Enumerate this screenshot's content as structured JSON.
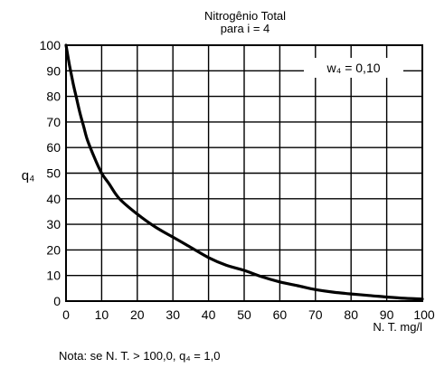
{
  "chart_data": {
    "type": "line",
    "title": "Nitrogênio Total",
    "subtitle": "para i = 4",
    "xlabel": "N. T. mg/l",
    "ylabel": "q₄",
    "annotation": "w₄ = 0,10",
    "note": "Nota: se N. T. > 100,0,  q₄ = 1,0",
    "xlim": [
      0,
      100
    ],
    "ylim": [
      0,
      100
    ],
    "grid": true,
    "x_ticks": [
      0,
      10,
      20,
      30,
      40,
      50,
      60,
      70,
      80,
      90,
      100
    ],
    "x_tick_labels": [
      "0",
      "10",
      "20",
      "30",
      "40",
      "50",
      "60",
      "70",
      "80",
      "90",
      "100"
    ],
    "y_ticks": [
      0,
      10,
      20,
      30,
      40,
      50,
      60,
      70,
      80,
      90,
      100
    ],
    "y_tick_labels": [
      "0",
      "10",
      "20",
      "30",
      "40",
      "50",
      "60",
      "70",
      "80",
      "90",
      "100"
    ],
    "series": [
      {
        "color": "#000000",
        "x": [
          0,
          1,
          2,
          3,
          4,
          5,
          6,
          8,
          10,
          12,
          15,
          20,
          25,
          30,
          35,
          40,
          45,
          50,
          55,
          60,
          65,
          70,
          75,
          80,
          85,
          90,
          95,
          100
        ],
        "y": [
          100,
          92,
          85,
          79,
          73,
          68,
          63,
          56,
          50,
          46,
          40,
          34,
          29,
          25,
          21,
          17,
          14,
          12,
          9.5,
          7.5,
          6,
          4.5,
          3.5,
          2.8,
          2.2,
          1.6,
          1.1,
          0.8
        ]
      }
    ]
  }
}
